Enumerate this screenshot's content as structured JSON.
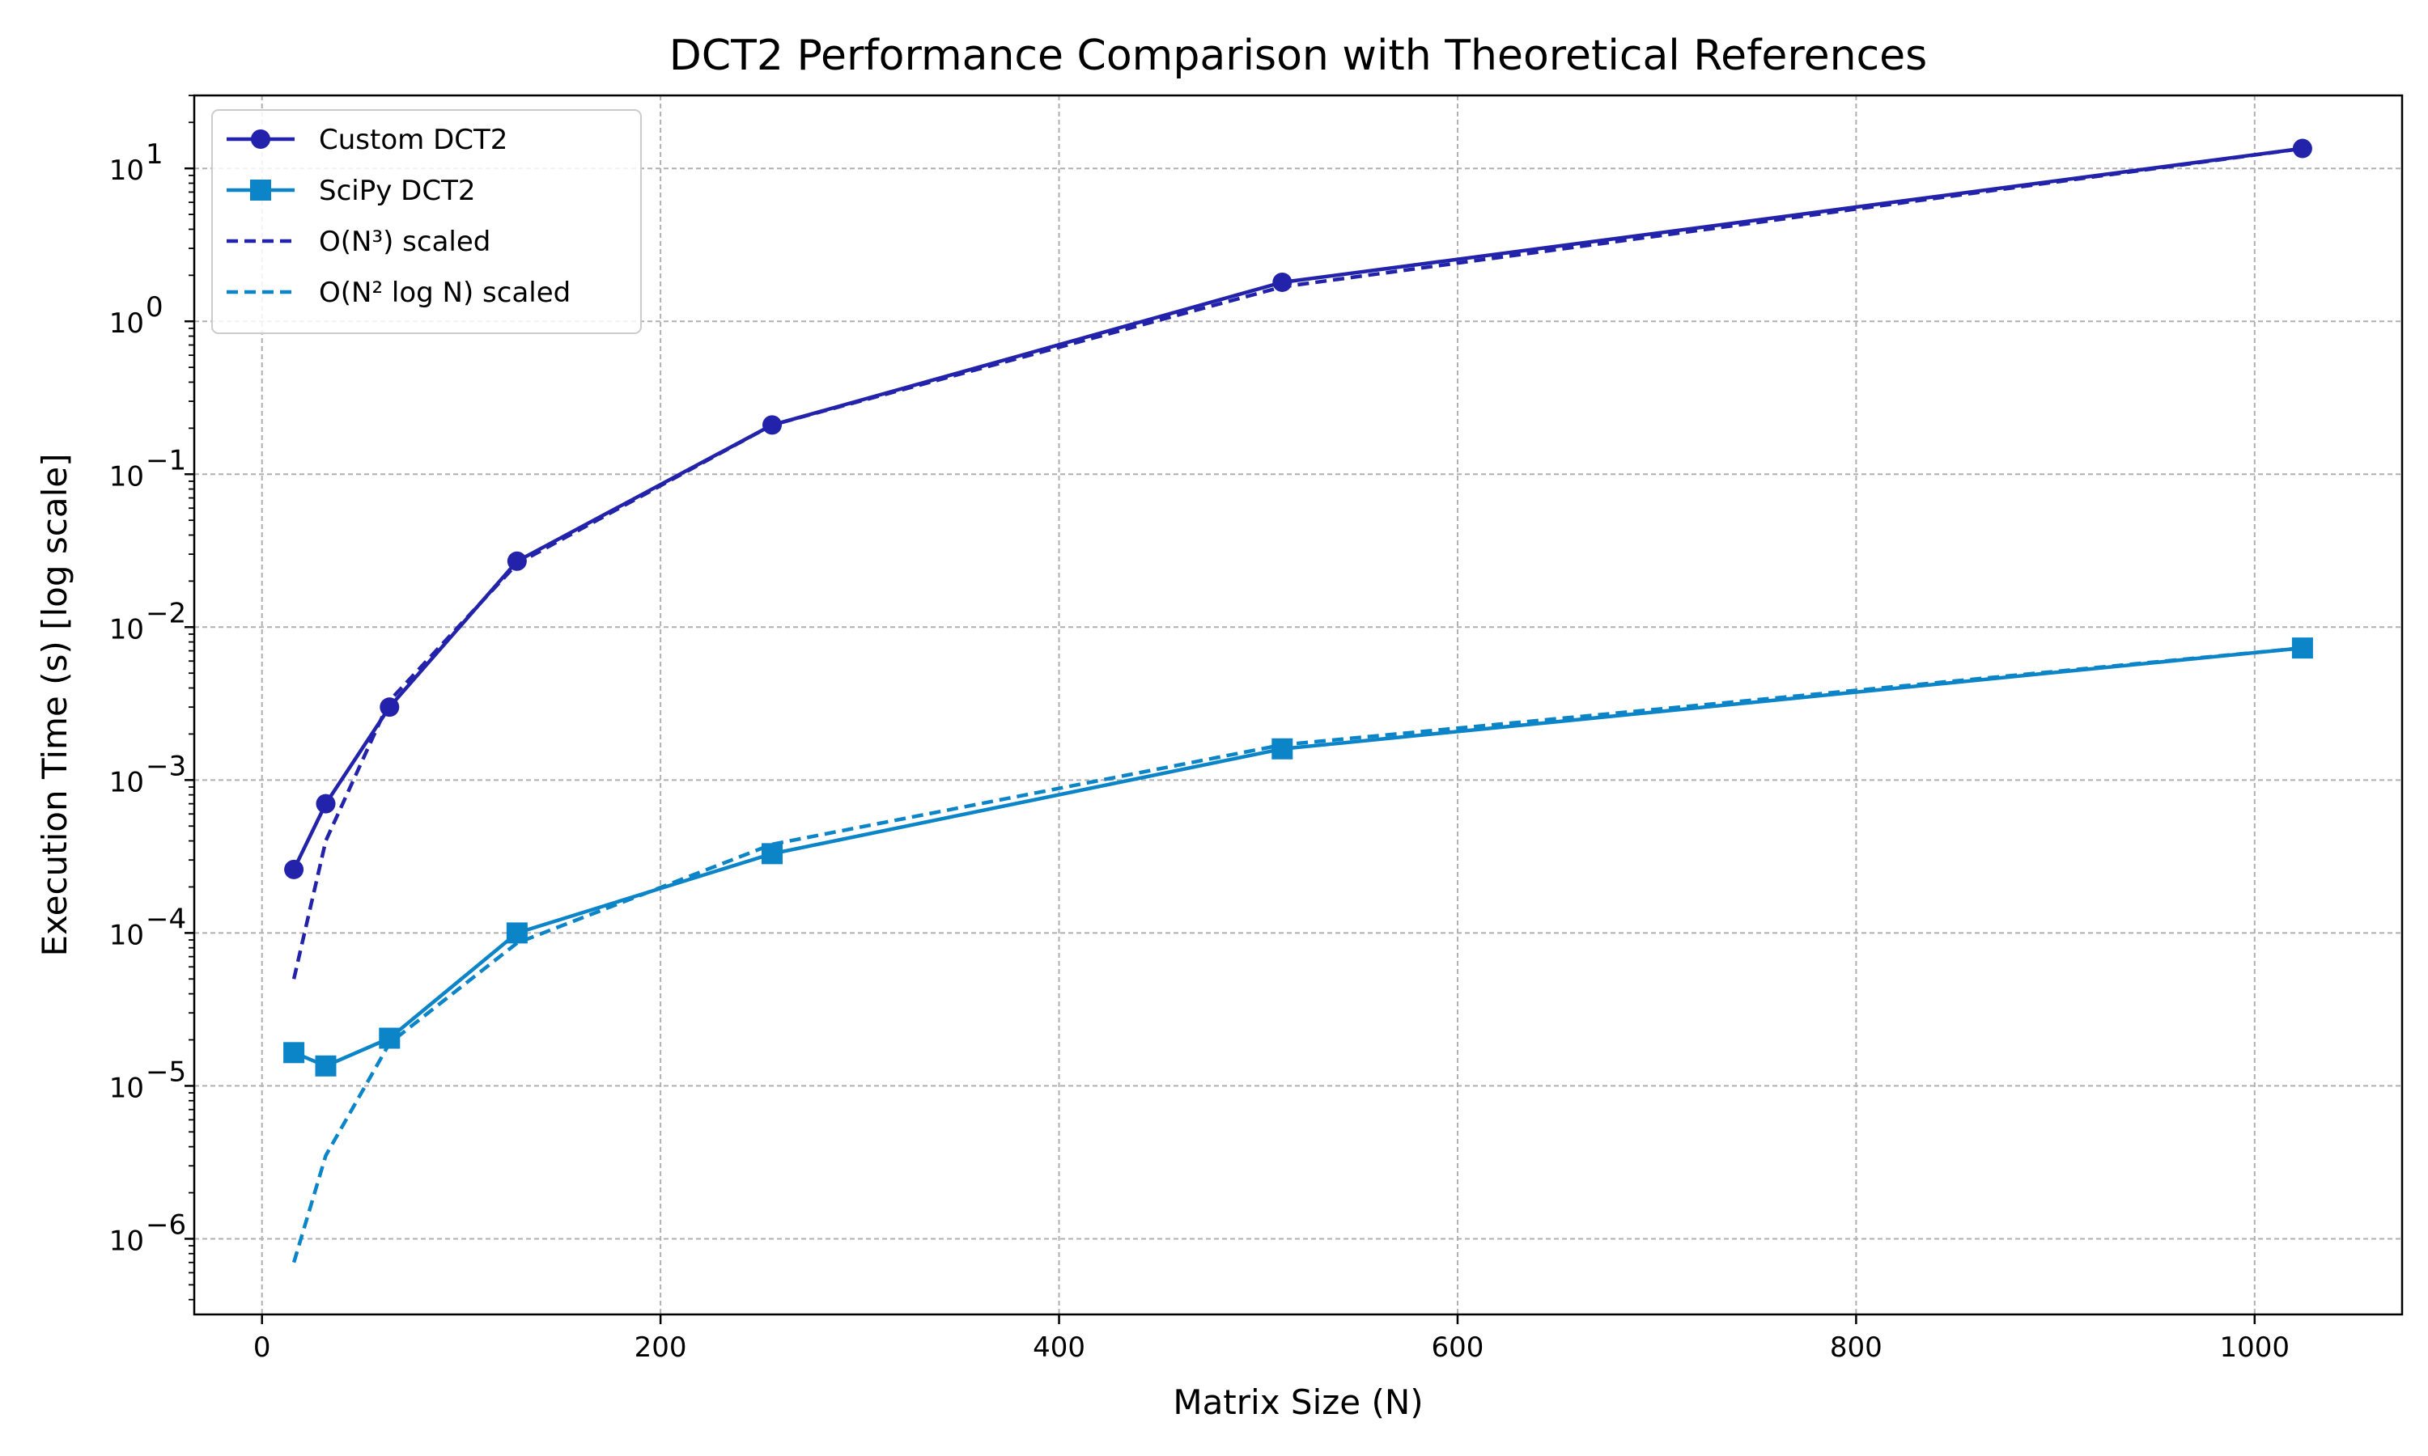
{
  "chart_data": {
    "type": "line",
    "title": "DCT2 Performance Comparison with Theoretical References",
    "xlabel": "Matrix Size (N)",
    "ylabel": "Execution Time (s) [log scale]",
    "xlim": [
      -34,
      1074
    ],
    "ylim": [
      3.2e-07,
      30
    ],
    "yscale": "log",
    "grid": true,
    "legend_position": "top-left",
    "x_ticks": [
      0,
      200,
      400,
      600,
      800,
      1000
    ],
    "y_ticks": [
      {
        "value": 1e-06,
        "base": "10",
        "exp": "−6"
      },
      {
        "value": 1e-05,
        "base": "10",
        "exp": "−5"
      },
      {
        "value": 0.0001,
        "base": "10",
        "exp": "−4"
      },
      {
        "value": 0.001,
        "base": "10",
        "exp": "−3"
      },
      {
        "value": 0.01,
        "base": "10",
        "exp": "−2"
      },
      {
        "value": 0.1,
        "base": "10",
        "exp": "−1"
      },
      {
        "value": 1,
        "base": "10",
        "exp": "0"
      },
      {
        "value": 10,
        "base": "10",
        "exp": "1"
      }
    ],
    "x": [
      16,
      32,
      64,
      128,
      256,
      512,
      1024
    ],
    "series": [
      {
        "name": "Custom DCT2",
        "color": "#2222aa",
        "style": "solid",
        "marker": "circle",
        "values": [
          0.00026,
          0.0007,
          0.003,
          0.027,
          0.21,
          1.8,
          13.5
        ]
      },
      {
        "name": "SciPy DCT2",
        "color": "#0b84c8",
        "style": "solid",
        "marker": "square",
        "values": [
          1.65e-05,
          1.35e-05,
          2.05e-05,
          0.0001,
          0.00033,
          0.0016,
          0.0073
        ]
      },
      {
        "name": "O(N³) scaled",
        "color": "#2222aa",
        "style": "dashed",
        "marker": "none",
        "values": [
          5e-05,
          0.0004,
          0.0033,
          0.026,
          0.21,
          1.68,
          13.5
        ]
      },
      {
        "name": "O(N² log N) scaled",
        "color": "#0b84c8",
        "style": "dashed",
        "marker": "none",
        "values": [
          7e-07,
          3.5e-06,
          1.9e-05,
          8.6e-05,
          0.00038,
          0.0017,
          0.0073
        ]
      }
    ]
  }
}
